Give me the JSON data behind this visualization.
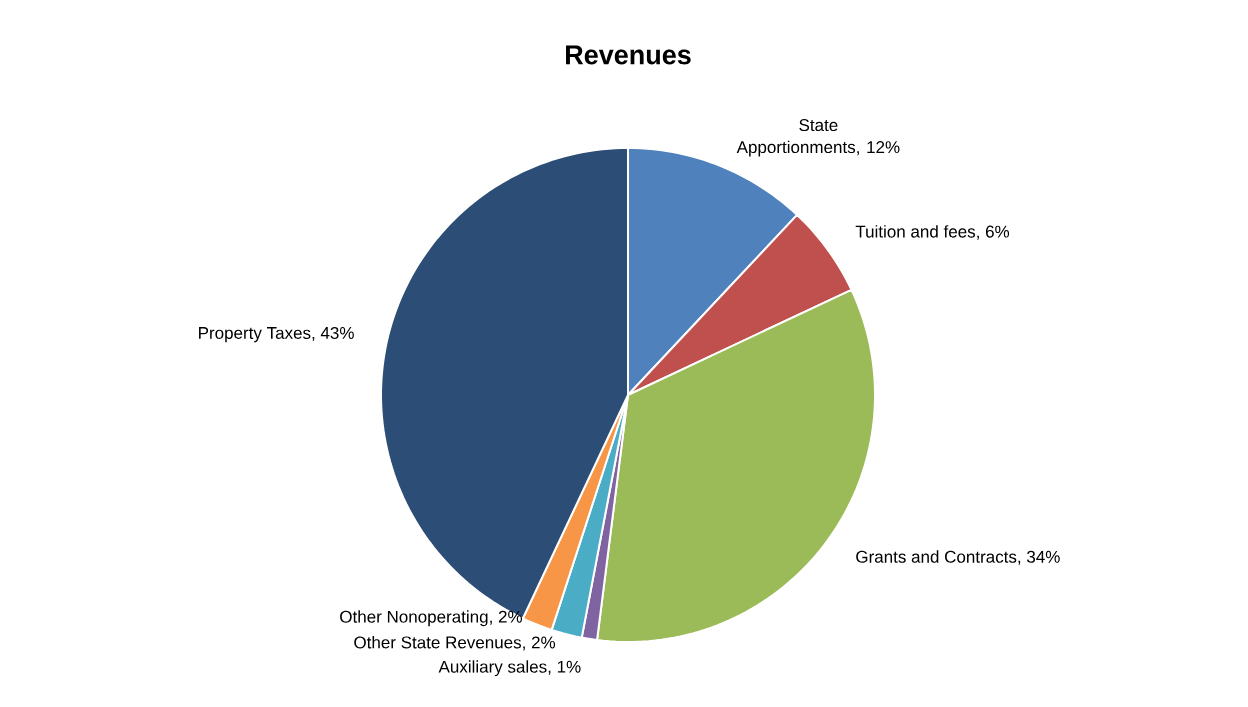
{
  "chart_data": {
    "type": "pie",
    "title": "Revenues",
    "categories": [
      "State Apportionments",
      "Tuition and fees",
      "Grants and Contracts",
      "Auxiliary sales",
      "Other State Revenues",
      "Other Nonoperating",
      "Property Taxes"
    ],
    "values": [
      12,
      6,
      34,
      1,
      2,
      2,
      43
    ],
    "value_labels": [
      ", 12%",
      ", 6%",
      ", 34%",
      ", 1%",
      ", 2%",
      ", 2%",
      ", 43%"
    ],
    "colors": [
      "#4f81bd",
      "#c0504d",
      "#9bbb59",
      "#8064a2",
      "#4bacc6",
      "#f79646",
      "#2c4d75"
    ]
  }
}
